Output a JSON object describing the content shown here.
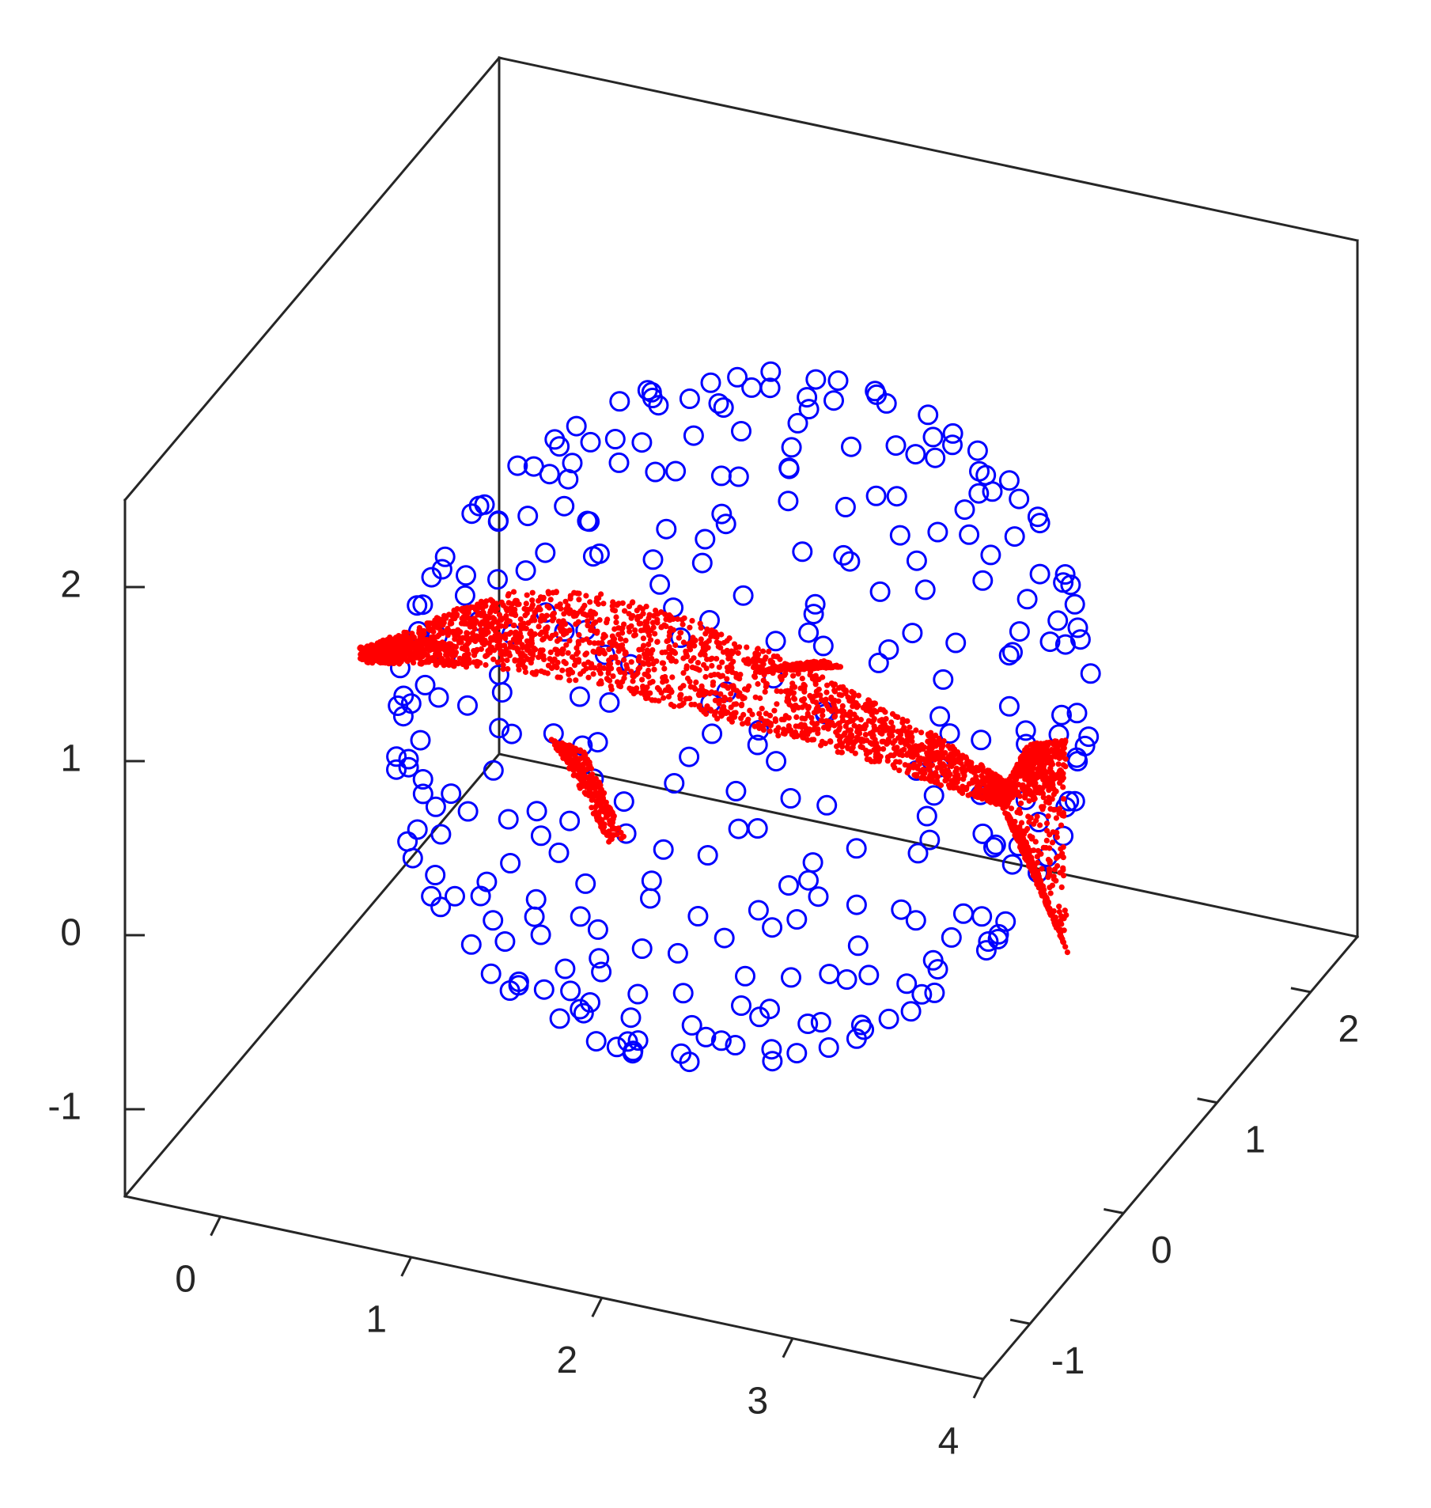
{
  "chart_data": {
    "type": "scatter",
    "dimensions": 3,
    "title": "",
    "xlabel": "",
    "ylabel": "",
    "zlabel": "",
    "grid": false,
    "box": true,
    "xlim": [
      -0.5,
      4
    ],
    "ylim": [
      -1.5,
      2.5
    ],
    "zlim": [
      -1.5,
      2.5
    ],
    "x_ticks": [
      "0",
      "1",
      "2",
      "3",
      "4"
    ],
    "y_ticks": [
      "-1",
      "0",
      "1",
      "2"
    ],
    "z_ticks": [
      "-1",
      "0",
      "1",
      "2"
    ],
    "series": [
      {
        "marker": "circle-open",
        "color": "#0000ff",
        "shape": "sphere",
        "center": [
          1.75,
          0.5,
          0.5
        ],
        "radius": 1.65,
        "count": 330
      },
      {
        "marker": "point",
        "color": "#ff0000",
        "shape": "dolphin-point-cloud",
        "x_range": [
          0.2,
          3.6
        ],
        "z_range": [
          0.0,
          1.8
        ]
      }
    ]
  }
}
